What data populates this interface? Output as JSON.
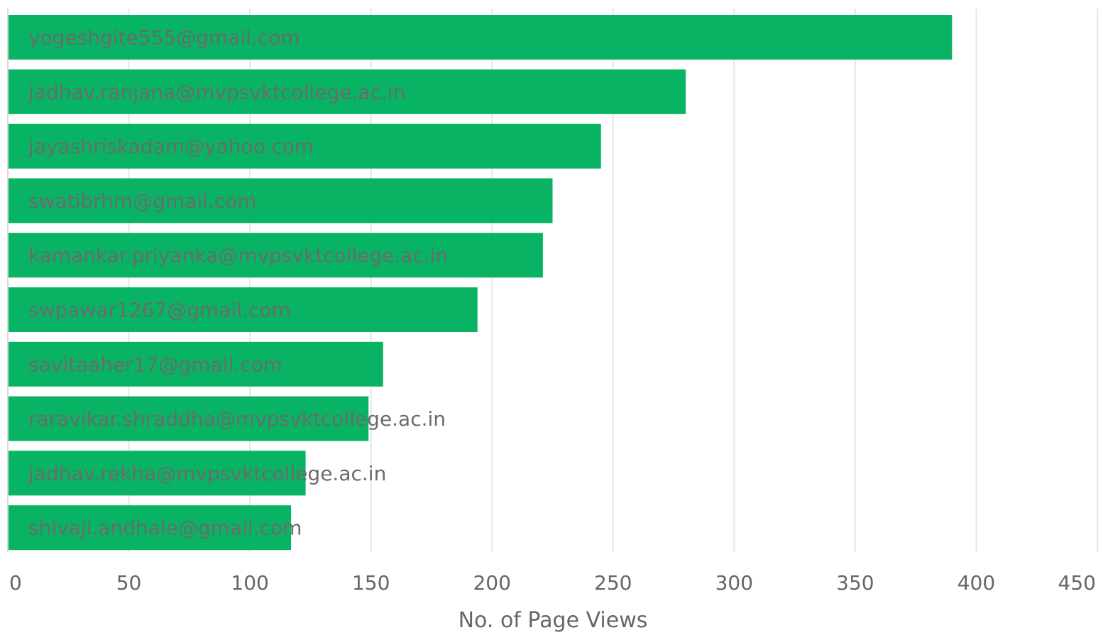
{
  "chart_data": {
    "type": "bar",
    "orientation": "horizontal",
    "categories": [
      "yogeshgite555@gmail.com",
      "jadhav.ranjana@mvpsvktcollege.ac.in",
      "jayashriskadam@yahoo.com",
      "swatibrhm@gmail.com",
      "kamankar.priyanka@mvpsvktcollege.ac.in",
      "swpawar1267@gmail.com",
      "savitaaher17@gmail.com",
      "raravikar.shraddha@mvpsvktcollege.ac.in",
      "jadhav.rekha@mvpsvktcollege.ac.in",
      "shivaji.andhale@gmail.com"
    ],
    "values": [
      390,
      280,
      245,
      225,
      221,
      194,
      155,
      149,
      123,
      117
    ],
    "xlabel": "No. of Page Views",
    "ylabel": "",
    "xlim": [
      0,
      450
    ],
    "xticks": [
      0,
      50,
      100,
      150,
      200,
      250,
      300,
      350,
      400,
      450
    ],
    "grid": true,
    "legend": "none",
    "bar_color": "#08b463"
  }
}
